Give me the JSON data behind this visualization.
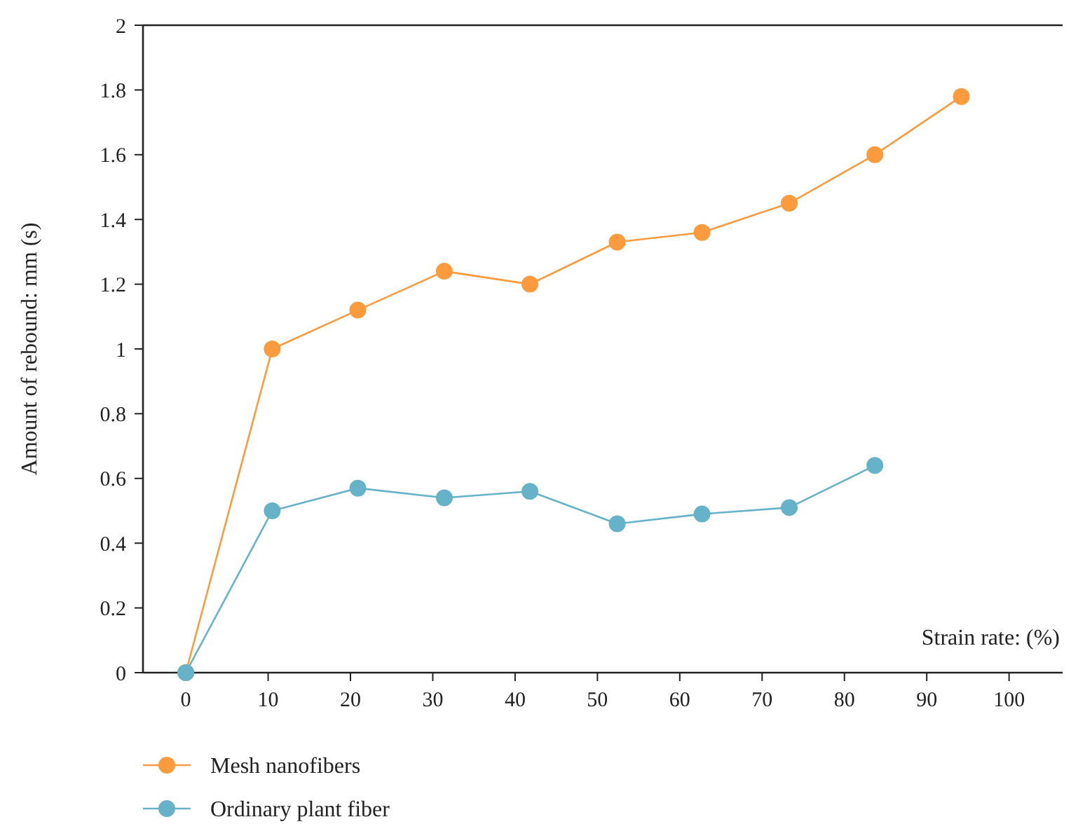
{
  "chart_data": {
    "type": "line",
    "xlabel": "Strain rate: (%)",
    "ylabel": "Amount of rebound: mm (s)",
    "x": [
      0,
      10.5,
      20.9,
      31.4,
      41.8,
      52.4,
      62.7,
      73.3,
      83.7,
      94.2
    ],
    "xlim": [
      -5.2,
      106.5
    ],
    "xticks": [
      0,
      10,
      20,
      30,
      40,
      50,
      60,
      70,
      80,
      90,
      100
    ],
    "ylim": [
      0,
      2
    ],
    "yticks": [
      0,
      0.2,
      0.4,
      0.6,
      0.8,
      1,
      1.2,
      1.4,
      1.6,
      1.8,
      2
    ],
    "marker": "circle",
    "line_style": "solid",
    "legend": "bottom",
    "grid": false,
    "series": [
      {
        "name": "Mesh nanofibers",
        "color": "#fb9b3d",
        "values": [
          0,
          1.0,
          1.12,
          1.24,
          1.2,
          1.33,
          1.36,
          1.45,
          1.6,
          1.78
        ]
      },
      {
        "name": "Ordinary plant fiber",
        "color": "#66b2c9",
        "values": [
          0,
          0.5,
          0.57,
          0.54,
          0.56,
          0.46,
          0.49,
          0.51,
          0.64,
          null
        ]
      }
    ]
  }
}
